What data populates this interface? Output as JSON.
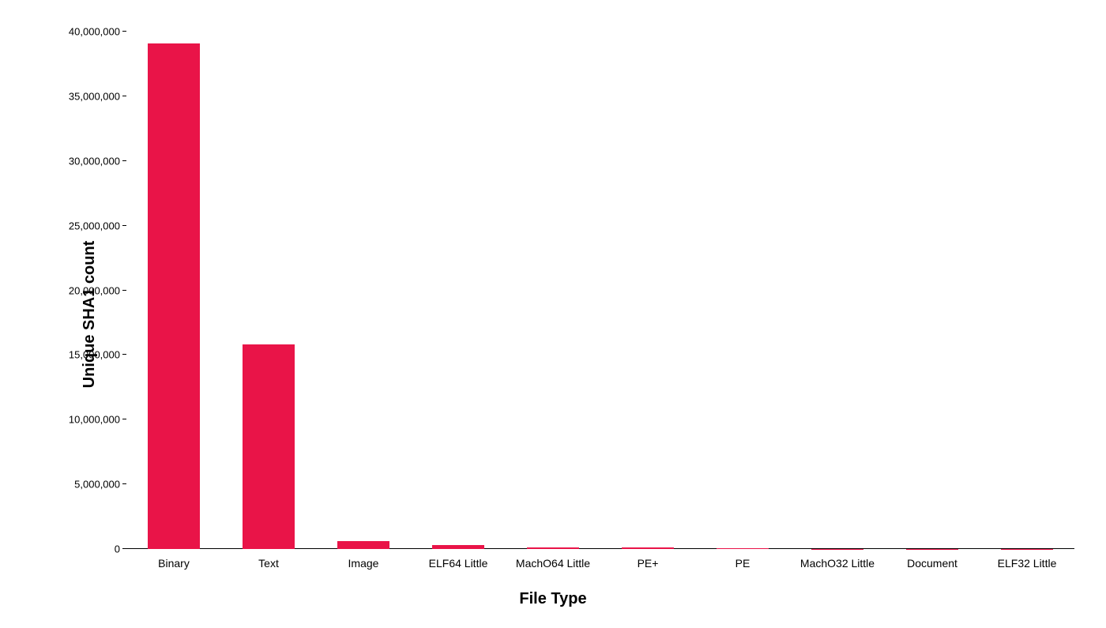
{
  "chart": {
    "type": "bar",
    "background_color": "#ffffff",
    "bar_color": "#e91448",
    "axis_color": "#000000",
    "label_color": "#000000",
    "y_axis": {
      "title": "Unique SHA1 count",
      "title_fontsize": 20,
      "title_fontweight": 800,
      "min": 0,
      "max": 40000000,
      "tick_step": 5000000,
      "ticks": [
        {
          "value": 0,
          "label": "0"
        },
        {
          "value": 5000000,
          "label": "5,000,000"
        },
        {
          "value": 10000000,
          "label": "10,000,000"
        },
        {
          "value": 15000000,
          "label": "15,000,000"
        },
        {
          "value": 20000000,
          "label": "20,000,000"
        },
        {
          "value": 25000000,
          "label": "25,000,000"
        },
        {
          "value": 30000000,
          "label": "30,000,000"
        },
        {
          "value": 35000000,
          "label": "35,000,000"
        },
        {
          "value": 40000000,
          "label": "40,000,000"
        }
      ],
      "tick_fontsize": 13
    },
    "x_axis": {
      "title": "File Type",
      "title_fontsize": 20,
      "title_fontweight": 800,
      "label_fontsize": 14
    },
    "bar_width_ratio": 0.55,
    "data": [
      {
        "category": "Binary",
        "value": 39100000
      },
      {
        "category": "Text",
        "value": 15800000
      },
      {
        "category": "Image",
        "value": 600000
      },
      {
        "category": "ELF64 Little",
        "value": 280000
      },
      {
        "category": "MachO64 Little",
        "value": 150000
      },
      {
        "category": "PE+",
        "value": 100000
      },
      {
        "category": "PE",
        "value": 90000
      },
      {
        "category": "MachO32 Little",
        "value": 30000
      },
      {
        "category": "Document",
        "value": 20000
      },
      {
        "category": "ELF32 Little",
        "value": 15000
      }
    ]
  }
}
